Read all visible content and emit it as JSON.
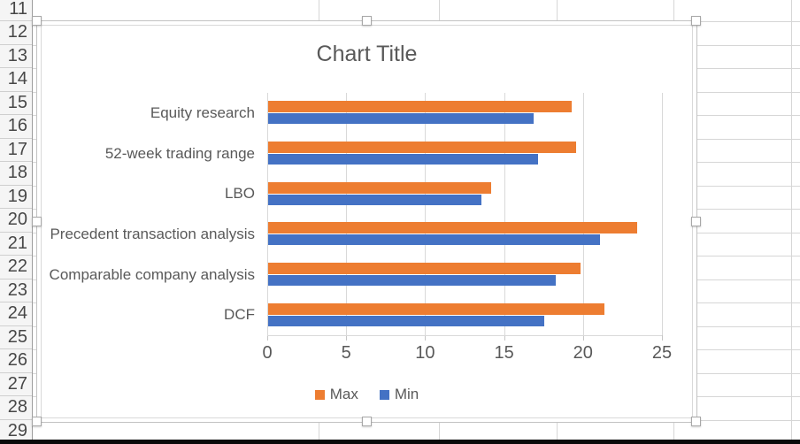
{
  "spreadsheet": {
    "row_numbers": [
      "11",
      "12",
      "13",
      "14",
      "15",
      "16",
      "17",
      "18",
      "19",
      "20",
      "21",
      "22",
      "23",
      "24",
      "25",
      "26",
      "27",
      "28",
      "29"
    ]
  },
  "chart_data": {
    "type": "bar",
    "orientation": "horizontal",
    "title": "Chart Title",
    "categories": [
      "Equity research",
      "52-week trading range",
      "LBO",
      "Precedent transaction analysis",
      "Comparable company analysis",
      "DCF"
    ],
    "series": [
      {
        "name": "Max",
        "color": "#ED7D31",
        "values": [
          19.2,
          19.5,
          14.1,
          23.4,
          19.8,
          21.3
        ]
      },
      {
        "name": "Min",
        "color": "#4472C4",
        "values": [
          16.8,
          17.1,
          13.5,
          21.0,
          18.2,
          17.5
        ]
      }
    ],
    "xlabel": "",
    "ylabel": "",
    "xlim": [
      0,
      25
    ],
    "ticks": [
      "0",
      "5",
      "10",
      "15",
      "20",
      "25"
    ],
    "grid": true,
    "legend_position": "bottom"
  },
  "colors": {
    "series_max": "#ED7D31",
    "series_min": "#4472C4",
    "plot_gridline": "#D9D9D9",
    "chart_text": "#595959",
    "sheet_gridline": "#D6D6D6",
    "row_header_bg": "#F5F5F5",
    "row_header_text": "#474747",
    "selection_border": "#C2C2C2",
    "handle_border": "#A8A8A8"
  }
}
